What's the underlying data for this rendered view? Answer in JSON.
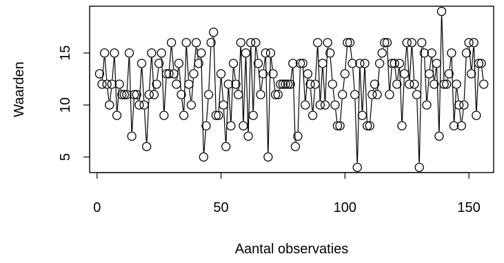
{
  "chart_data": {
    "type": "line",
    "style": "points-and-lines",
    "xlabel": "Aantal observaties",
    "ylabel": "Waarden",
    "xlim": [
      -3,
      160
    ],
    "ylim": [
      3.5,
      19.5
    ],
    "x_ticks": [
      0,
      50,
      100,
      150
    ],
    "y_ticks": [
      5,
      10,
      15
    ],
    "x_tick_labels": [
      "0",
      "50",
      "100",
      "150"
    ],
    "y_tick_labels": [
      "5",
      "10",
      "15"
    ],
    "grid": false,
    "box": true,
    "series": [
      {
        "values": [
          13,
          12,
          15,
          12,
          10,
          12,
          15,
          9,
          12,
          11,
          11,
          11,
          15,
          7,
          11,
          11,
          10,
          14,
          10,
          6,
          11,
          15,
          11,
          12,
          14,
          15,
          9,
          13,
          13,
          16,
          13,
          12,
          14,
          11,
          9,
          16,
          12,
          10,
          13,
          16,
          14,
          15,
          5,
          8,
          11,
          16,
          17,
          9,
          9,
          13,
          10,
          6,
          12,
          8,
          14,
          12,
          11,
          16,
          8,
          15,
          7,
          16,
          9,
          16,
          14,
          11,
          13,
          15,
          5,
          15,
          13,
          11,
          11,
          12,
          12,
          12,
          12,
          12,
          14,
          6,
          7,
          14,
          14,
          10,
          13,
          12,
          9,
          12,
          16,
          10,
          14,
          10,
          16,
          15,
          12,
          10,
          8,
          8,
          11,
          13,
          16,
          16,
          14,
          11,
          4,
          14,
          9,
          14,
          8,
          8,
          11,
          12,
          11,
          14,
          15,
          16,
          16,
          11,
          14,
          14,
          12,
          14,
          8,
          13,
          16,
          12,
          16,
          12,
          11,
          4,
          16,
          15,
          10,
          13,
          15,
          12,
          14,
          7,
          19,
          12,
          12,
          13,
          15,
          8,
          12,
          10,
          8,
          10,
          15,
          16,
          13,
          16,
          9,
          14,
          14,
          12
        ]
      }
    ]
  }
}
